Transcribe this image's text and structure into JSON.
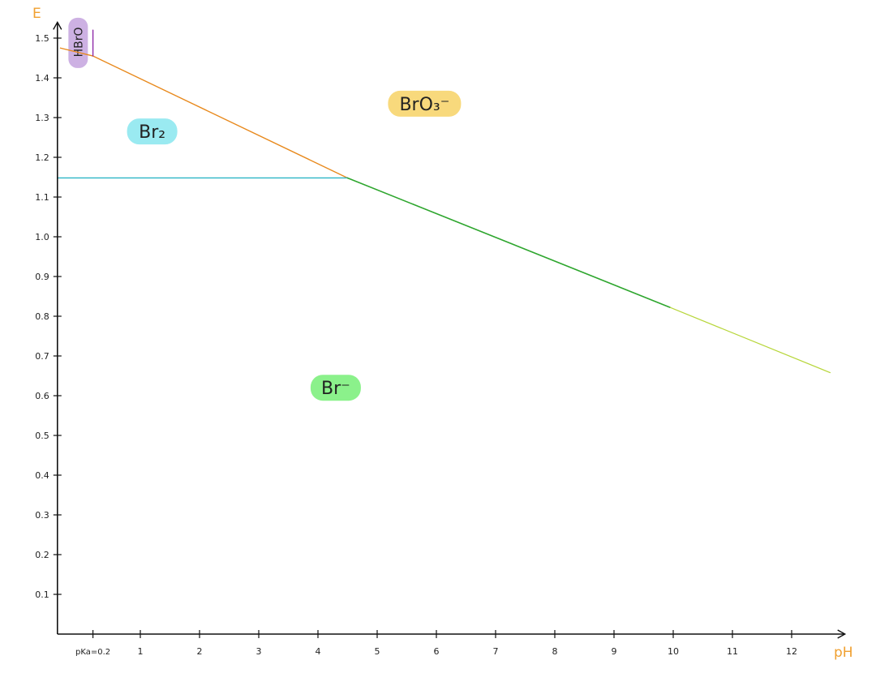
{
  "chart_data": {
    "type": "line",
    "title": "",
    "xlabel": "pH",
    "ylabel": "E",
    "xlim": [
      -0.4,
      12.9
    ],
    "ylim": [
      0,
      1.54
    ],
    "grid": false,
    "legend": "none",
    "x_ticks": [
      {
        "value": 0.2,
        "label": "pKa=0.2"
      },
      {
        "value": 1,
        "label": "1"
      },
      {
        "value": 2,
        "label": "2"
      },
      {
        "value": 3,
        "label": "3"
      },
      {
        "value": 4,
        "label": "4"
      },
      {
        "value": 5,
        "label": "5"
      },
      {
        "value": 6,
        "label": "6"
      },
      {
        "value": 7,
        "label": "7"
      },
      {
        "value": 8,
        "label": "8"
      },
      {
        "value": 9,
        "label": "9"
      },
      {
        "value": 10,
        "label": "10"
      },
      {
        "value": 11,
        "label": "11"
      },
      {
        "value": 12,
        "label": "12"
      }
    ],
    "y_ticks": [
      {
        "value": 0.1,
        "label": "0.1"
      },
      {
        "value": 0.2,
        "label": "0.2"
      },
      {
        "value": 0.3,
        "label": "0.3"
      },
      {
        "value": 0.4,
        "label": "0.4"
      },
      {
        "value": 0.5,
        "label": "0.5"
      },
      {
        "value": 0.6,
        "label": "0.6"
      },
      {
        "value": 0.7,
        "label": "0.7"
      },
      {
        "value": 0.8,
        "label": "0.8"
      },
      {
        "value": 0.9,
        "label": "0.9"
      },
      {
        "value": 1.0,
        "label": "1.0"
      },
      {
        "value": 1.1,
        "label": "1.1"
      },
      {
        "value": 1.2,
        "label": "1.2"
      },
      {
        "value": 1.3,
        "label": "1.3"
      },
      {
        "value": 1.4,
        "label": "1.4"
      },
      {
        "value": 1.5,
        "label": "1.5"
      }
    ],
    "series": [
      {
        "color": "#e8891c",
        "width": 1.4,
        "points": [
          [
            -0.35,
            1.475
          ],
          [
            0.2,
            1.455
          ],
          [
            4.5,
            1.148
          ]
        ]
      },
      {
        "color": "#2bb5c6",
        "width": 1.4,
        "points": [
          [
            -0.4,
            1.148
          ],
          [
            4.5,
            1.148
          ]
        ]
      },
      {
        "color": "#2ea62e",
        "width": 1.6,
        "points": [
          [
            4.5,
            1.148
          ],
          [
            9.95,
            0.822
          ]
        ]
      },
      {
        "color": "#b7d63a",
        "width": 1.2,
        "points": [
          [
            9.95,
            0.822
          ],
          [
            12.65,
            0.658
          ]
        ]
      },
      {
        "color": "#8e2aa8",
        "width": 1.4,
        "points": [
          [
            0.2,
            1.455
          ],
          [
            0.2,
            1.52
          ]
        ]
      }
    ],
    "regions": [
      {
        "label": "HBrO",
        "x": -0.05,
        "y": 1.49,
        "color": "#c8a9e0",
        "vertical": true
      },
      {
        "label": "Br₂",
        "x": 1.2,
        "y": 1.265,
        "color": "#8fe8f0",
        "vertical": false
      },
      {
        "label": "BrO₃⁻",
        "x": 5.8,
        "y": 1.335,
        "color": "#f7d56e",
        "vertical": false
      },
      {
        "label": "Br⁻",
        "x": 4.3,
        "y": 0.62,
        "color": "#7ef07e",
        "vertical": false
      }
    ]
  }
}
